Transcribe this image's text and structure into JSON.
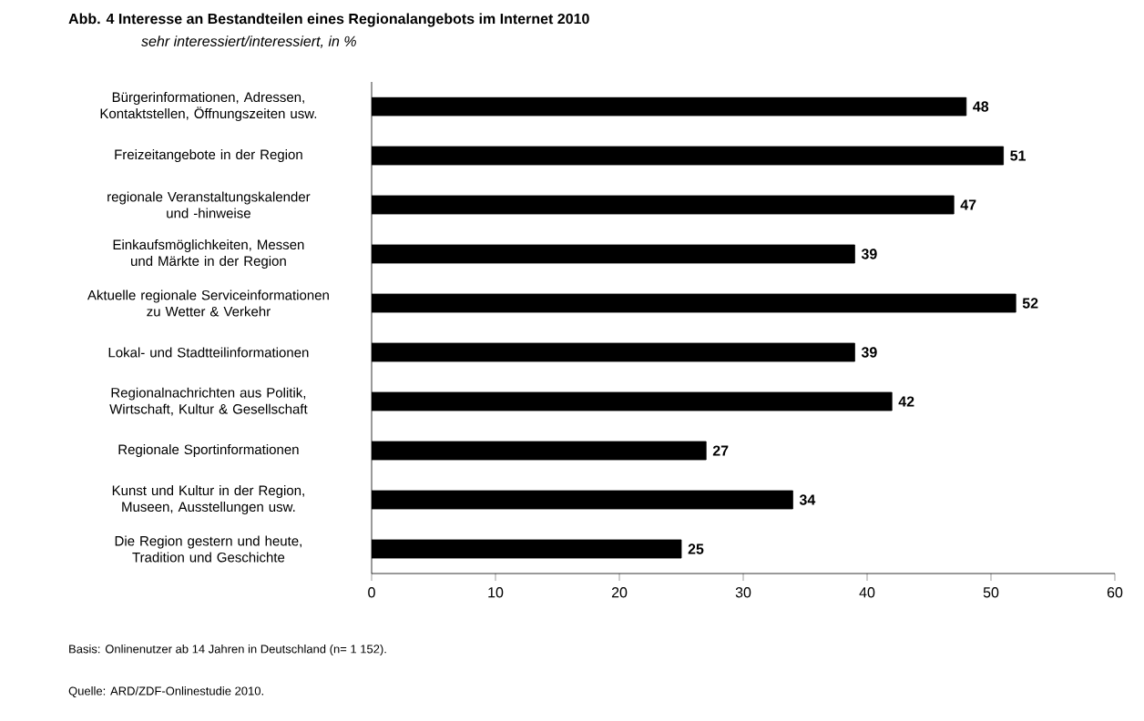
{
  "chart_data": {
    "type": "bar",
    "orientation": "horizontal",
    "title": "Abb. 4   Interesse an Bestandteilen eines Regionalangebots im Internet 2010",
    "subtitle": "sehr interessiert/interessiert, in %",
    "categories": [
      "Bürgerinformationen, Adressen, Kontaktstellen, Öffnungszeiten usw.",
      "Freizeitangebote in der Region",
      "regionale Veranstaltungskalender und -hinweise",
      "Einkaufsmöglichkeiten, Messen und Märkte in der Region",
      "Aktuelle regionale Serviceinformationen zu Wetter & Verkehr",
      "Lokal- und Stadtteilinformationen",
      "Regionalnachrichten aus Politik, Wirtschaft, Kultur & Gesellschaft",
      "Regionale Sportinformationen",
      "Kunst und Kultur in der Region, Museen, Ausstellungen usw.",
      "Die Region gestern und heute, Tradition und Geschichte"
    ],
    "values": [
      48,
      51,
      47,
      39,
      52,
      39,
      42,
      27,
      34,
      25
    ],
    "color": "#000000",
    "data_labels": true,
    "xlim": [
      0,
      60
    ],
    "xticks": [
      0,
      10,
      20,
      30,
      40,
      50,
      60
    ],
    "annotations": [
      "Basis: Onlinenutzer ab 14 Jahren in Deutschland (n= 1 152).",
      "Quelle: ARD/ZDF-Onlinestudie 2010."
    ]
  }
}
